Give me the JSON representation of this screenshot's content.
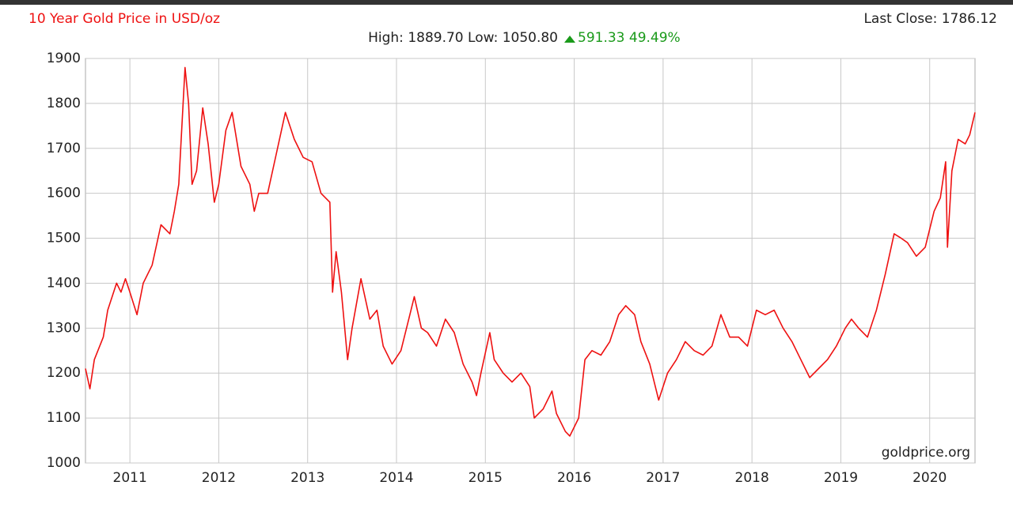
{
  "chart_data": {
    "type": "line",
    "title": "10 Year Gold Price in USD/oz",
    "last_close": "Last Close: 1786.12",
    "stats": "High: 1889.70 Low: 1050.80",
    "change": "591.33 49.49%",
    "watermark": "goldprice.org",
    "color": "#ee1111",
    "grid": true,
    "xlim": [
      2010.5,
      2020.51
    ],
    "xticks": [
      2011,
      2012,
      2013,
      2014,
      2015,
      2016,
      2017,
      2018,
      2019,
      2020
    ],
    "ylim": [
      1000,
      1900
    ],
    "yticks": [
      1000,
      1100,
      1200,
      1300,
      1400,
      1500,
      1600,
      1700,
      1800,
      1900
    ],
    "x": [
      2010.5,
      2010.55,
      2010.6,
      2010.7,
      2010.75,
      2010.8,
      2010.85,
      2010.9,
      2010.95,
      2011.0,
      2011.08,
      2011.15,
      2011.25,
      2011.35,
      2011.45,
      2011.5,
      2011.55,
      2011.62,
      2011.66,
      2011.7,
      2011.75,
      2011.82,
      2011.88,
      2011.95,
      2012.0,
      2012.08,
      2012.15,
      2012.25,
      2012.35,
      2012.4,
      2012.45,
      2012.55,
      2012.65,
      2012.75,
      2012.85,
      2012.95,
      2013.05,
      2013.15,
      2013.25,
      2013.28,
      2013.32,
      2013.38,
      2013.45,
      2013.5,
      2013.6,
      2013.7,
      2013.78,
      2013.85,
      2013.95,
      2014.05,
      2014.15,
      2014.2,
      2014.28,
      2014.35,
      2014.45,
      2014.55,
      2014.65,
      2014.75,
      2014.85,
      2014.9,
      2014.95,
      2015.05,
      2015.1,
      2015.2,
      2015.3,
      2015.4,
      2015.5,
      2015.55,
      2015.65,
      2015.75,
      2015.8,
      2015.9,
      2015.95,
      2016.05,
      2016.12,
      2016.2,
      2016.3,
      2016.4,
      2016.5,
      2016.58,
      2016.68,
      2016.75,
      2016.85,
      2016.95,
      2017.05,
      2017.15,
      2017.25,
      2017.35,
      2017.45,
      2017.55,
      2017.65,
      2017.75,
      2017.85,
      2017.95,
      2018.05,
      2018.15,
      2018.25,
      2018.35,
      2018.45,
      2018.55,
      2018.65,
      2018.75,
      2018.85,
      2018.95,
      2019.05,
      2019.12,
      2019.2,
      2019.3,
      2019.4,
      2019.5,
      2019.6,
      2019.68,
      2019.75,
      2019.85,
      2019.95,
      2020.05,
      2020.12,
      2020.18,
      2020.2,
      2020.25,
      2020.32,
      2020.4,
      2020.45,
      2020.51
    ],
    "values": [
      1210,
      1165,
      1230,
      1280,
      1340,
      1370,
      1400,
      1380,
      1410,
      1380,
      1330,
      1400,
      1440,
      1530,
      1510,
      1560,
      1620,
      1880,
      1800,
      1620,
      1650,
      1790,
      1710,
      1580,
      1620,
      1740,
      1780,
      1660,
      1620,
      1560,
      1600,
      1600,
      1690,
      1780,
      1720,
      1680,
      1670,
      1600,
      1580,
      1380,
      1470,
      1380,
      1230,
      1300,
      1410,
      1320,
      1340,
      1260,
      1220,
      1250,
      1330,
      1370,
      1300,
      1290,
      1260,
      1320,
      1290,
      1220,
      1180,
      1150,
      1200,
      1290,
      1230,
      1200,
      1180,
      1200,
      1170,
      1100,
      1120,
      1160,
      1110,
      1070,
      1060,
      1100,
      1230,
      1250,
      1240,
      1270,
      1330,
      1350,
      1330,
      1270,
      1220,
      1140,
      1200,
      1230,
      1270,
      1250,
      1240,
      1260,
      1330,
      1280,
      1280,
      1260,
      1340,
      1330,
      1340,
      1300,
      1270,
      1230,
      1190,
      1210,
      1230,
      1260,
      1300,
      1320,
      1300,
      1280,
      1340,
      1420,
      1510,
      1500,
      1490,
      1460,
      1480,
      1560,
      1590,
      1670,
      1480,
      1650,
      1720,
      1710,
      1730,
      1780
    ]
  }
}
